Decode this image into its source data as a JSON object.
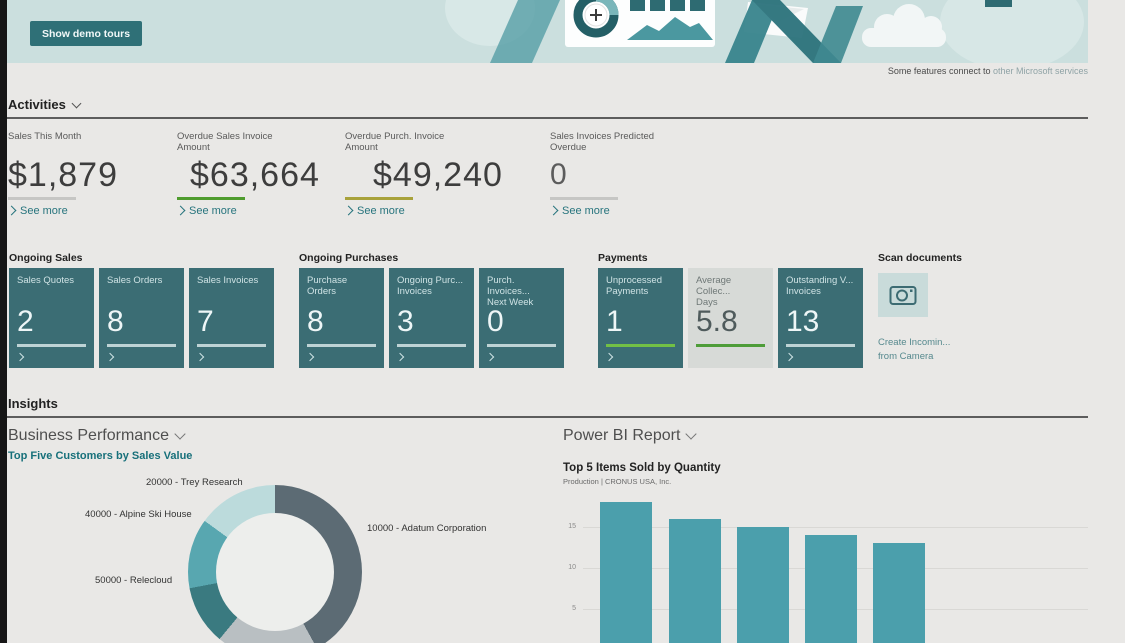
{
  "banner": {
    "button_label": "Show demo tours",
    "footnote_dark": "Some features connect to ",
    "footnote_link": "other Microsoft services"
  },
  "activities": {
    "title": "Activities",
    "kpis": [
      {
        "label": "Sales This Month",
        "value": "$1,879",
        "link": "See more",
        "underline_color": "#c6c6c4"
      },
      {
        "label": "Overdue Sales Invoice\nAmount",
        "value": "$63,664",
        "link": "See more",
        "underline_color": "#4f9c2e"
      },
      {
        "label": "Overdue Purch. Invoice\nAmount",
        "value": "$49,240",
        "link": "See more",
        "underline_color": "#a8a23b"
      },
      {
        "label": "Sales Invoices Predicted\nOverdue",
        "value": "0",
        "link": "See more",
        "underline_color": "#c6c6c4"
      }
    ]
  },
  "tile_groups": [
    {
      "title": "Ongoing Sales",
      "tiles": [
        {
          "label": "Sales Quotes",
          "value": "2",
          "style": "dark"
        },
        {
          "label": "Sales Orders",
          "value": "8",
          "style": "dark"
        },
        {
          "label": "Sales Invoices",
          "value": "7",
          "style": "dark"
        }
      ]
    },
    {
      "title": "Ongoing Purchases",
      "tiles": [
        {
          "label": "Purchase Orders",
          "value": "8",
          "style": "dark"
        },
        {
          "label": "Ongoing Purc...\nInvoices",
          "value": "3",
          "style": "dark"
        },
        {
          "label": "Purch. Invoices...\nNext Week",
          "value": "0",
          "style": "dark"
        }
      ]
    },
    {
      "title": "Payments",
      "tiles": [
        {
          "label": "Unprocessed\nPayments",
          "value": "1",
          "style": "dark",
          "underline_color": "#72c045"
        },
        {
          "label": "Average Collec...\nDays",
          "value": "5.8",
          "style": "light",
          "underline_color": "#4e9d39",
          "no_chevron": true
        },
        {
          "label": "Outstanding V...\nInvoices",
          "value": "13",
          "style": "dark"
        }
      ]
    }
  ],
  "scan": {
    "title": "Scan documents",
    "caption": "Create Incomin...\nfrom Camera"
  },
  "insights": {
    "title": "Insights",
    "business_performance_header": "Business Performance",
    "power_bi_header": "Power BI Report"
  },
  "chart_data": [
    {
      "type": "pie",
      "variant": "donut",
      "title": "Top Five Customers by Sales Value",
      "slices": [
        {
          "label": "10000 - Adatum Corporation",
          "percent": 42,
          "color": "#5c6b74"
        },
        {
          "label": "",
          "percent": 19,
          "color": "#b9bfc2"
        },
        {
          "label": "50000 - Relecloud",
          "percent": 11,
          "color": "#3a7a80"
        },
        {
          "label": "40000 - Alpine Ski House",
          "percent": 13,
          "color": "#58a7b0"
        },
        {
          "label": "20000 - Trey Research",
          "percent": 15,
          "color": "#bcdbdc"
        }
      ],
      "legend_position": "callout-labels",
      "note": "bottom of donut cropped by viewport"
    },
    {
      "type": "bar",
      "title": "Top 5 Items Sold by Quantity",
      "subtitle": "Production | CRONUS USA, Inc.",
      "categories": [
        "",
        "",
        "",
        "",
        ""
      ],
      "values": [
        18,
        16,
        15,
        14,
        13
      ],
      "ylim": [
        0,
        18
      ],
      "yticks": [
        5,
        10,
        15
      ],
      "bar_color": "#4b9fac",
      "grid": true,
      "x_labels_visible": false
    }
  ]
}
